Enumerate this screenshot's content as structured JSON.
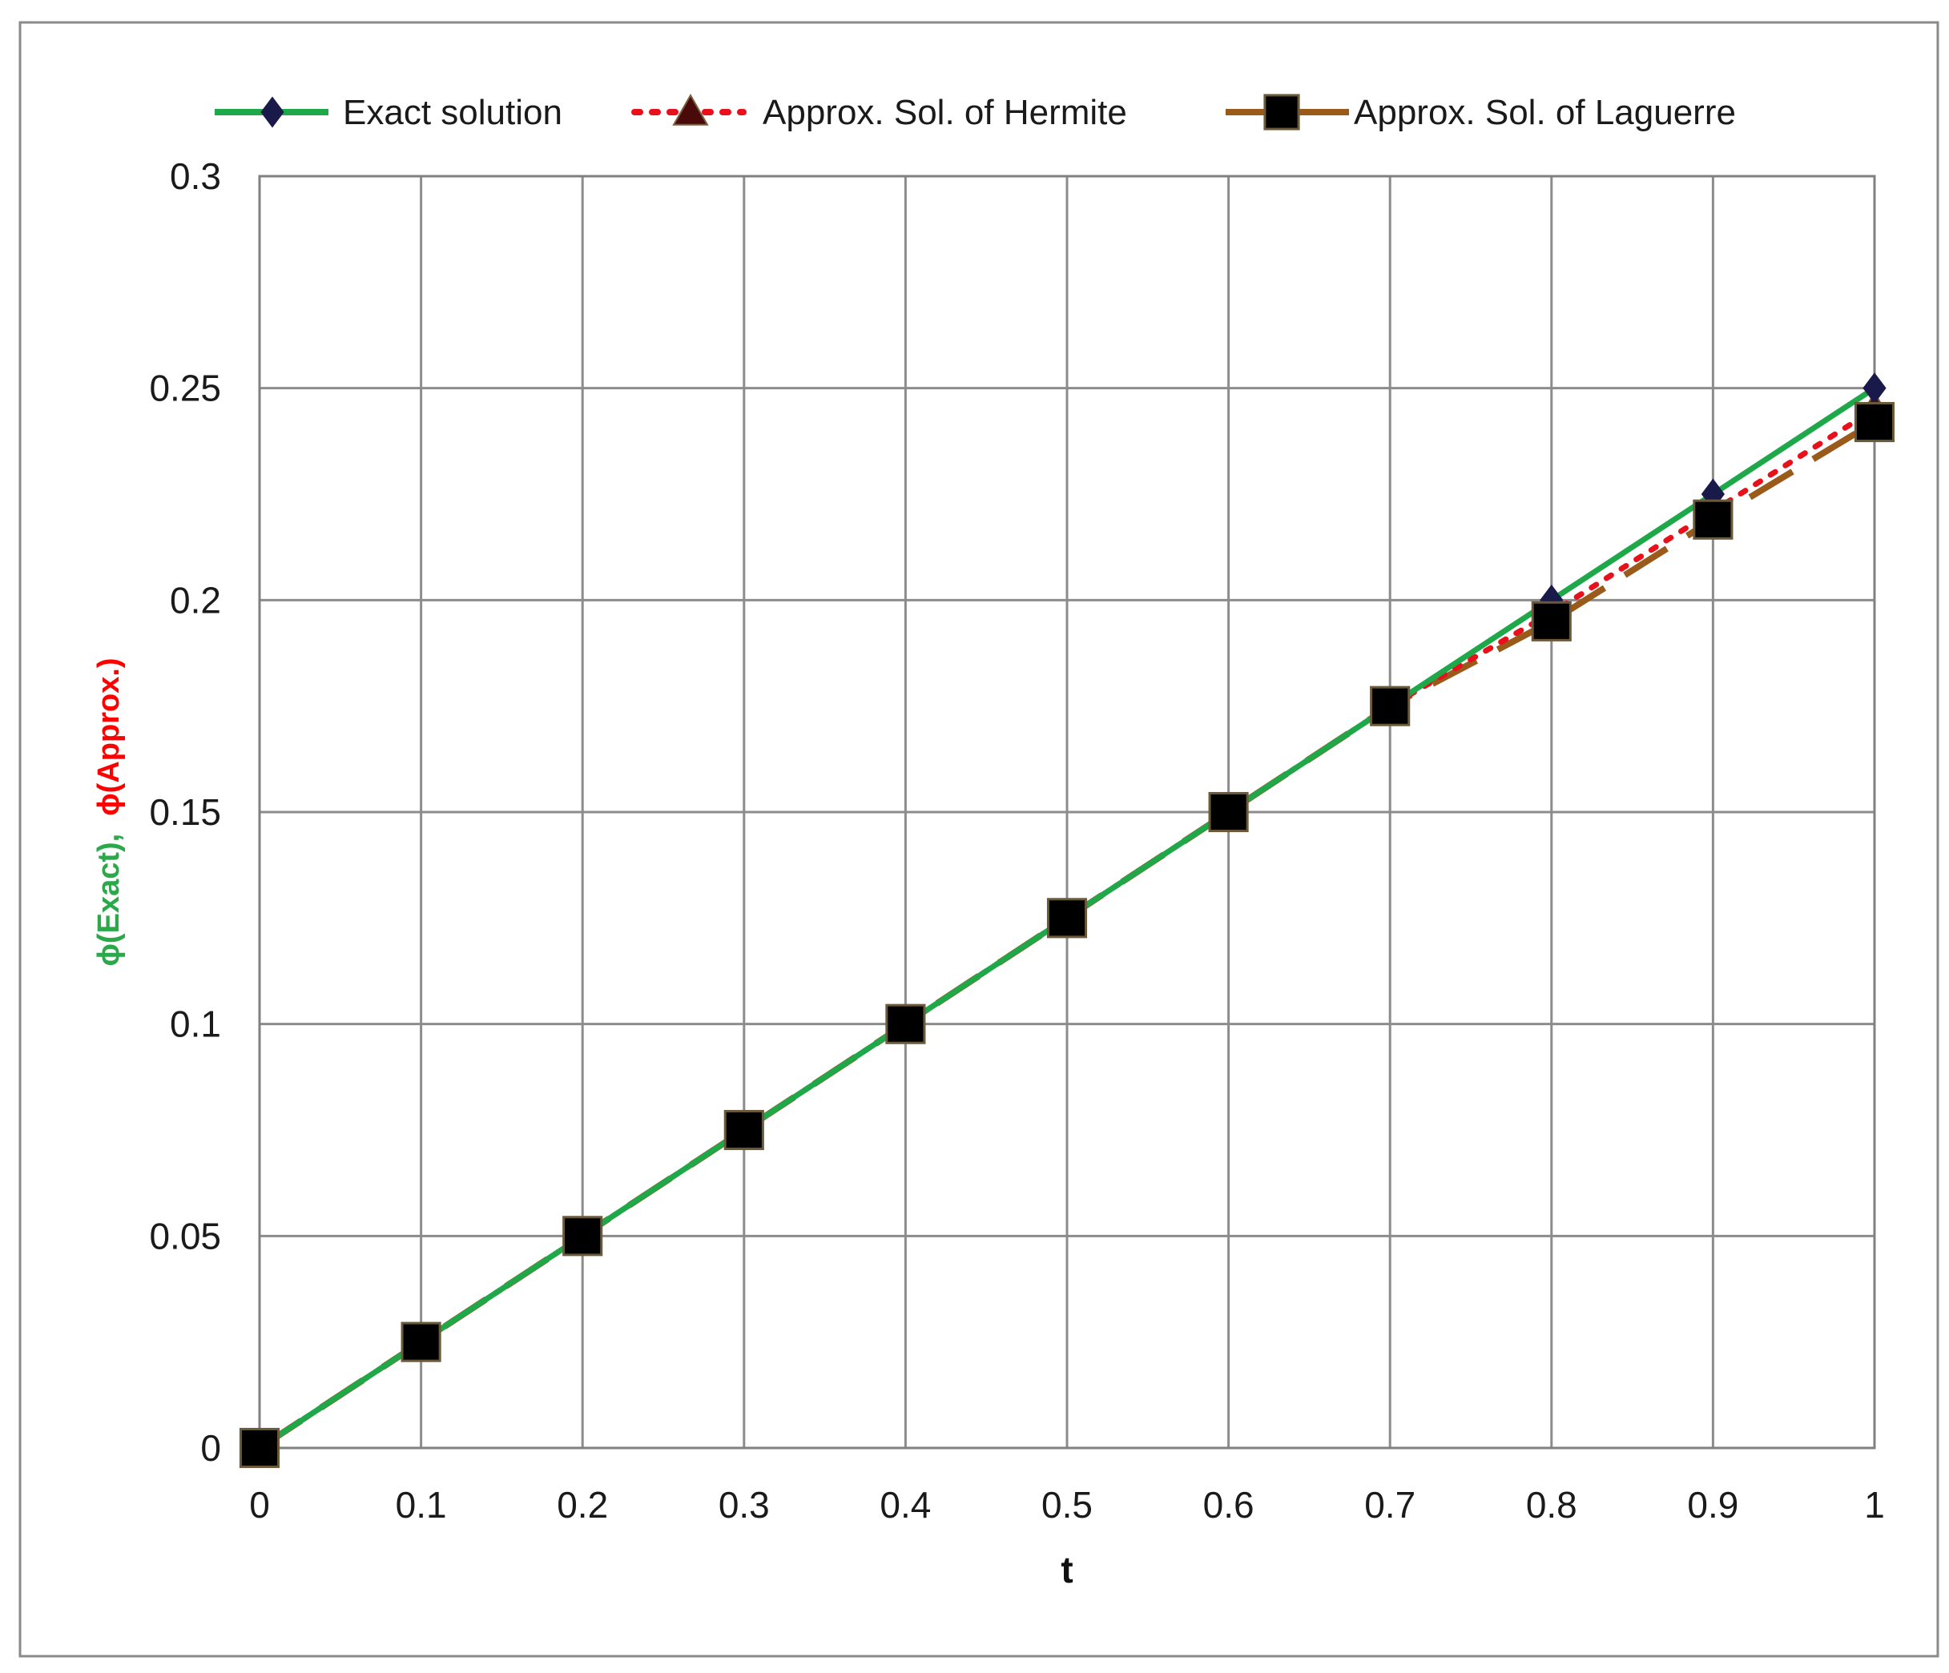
{
  "chart_data": {
    "type": "line",
    "title": "",
    "xlabel": "t",
    "ylabel_parts": [
      {
        "text": "ϕ(Exact),",
        "color": "#2aa84a"
      },
      {
        "text": "ϕ(Approx.)",
        "color": "#ff0000"
      }
    ],
    "xlim": [
      0,
      1
    ],
    "ylim": [
      0,
      0.3
    ],
    "x_ticks": [
      "0",
      "0.1",
      "0.2",
      "0.3",
      "0.4",
      "0.5",
      "0.6",
      "0.7",
      "0.8",
      "0.9",
      "1"
    ],
    "y_ticks": [
      "0",
      "0.05",
      "0.1",
      "0.15",
      "0.2",
      "0.25",
      "0.3"
    ],
    "grid": true,
    "legend_position": "top",
    "x": [
      0,
      0.1,
      0.2,
      0.3,
      0.4,
      0.5,
      0.6,
      0.7,
      0.8,
      0.9,
      1.0
    ],
    "series": [
      {
        "name": "Exact solution",
        "values": [
          0,
          0.025,
          0.05,
          0.075,
          0.1,
          0.125,
          0.15,
          0.175,
          0.2,
          0.225,
          0.25
        ],
        "color": "#1ea84a",
        "line_style": "solid",
        "marker": "diamond",
        "marker_color": "#1a1a4a"
      },
      {
        "name": "Approx. Sol. of Hermite",
        "values": [
          0,
          0.025,
          0.05,
          0.075,
          0.1,
          0.125,
          0.15,
          0.175,
          0.197,
          0.221,
          0.245
        ],
        "color": "#e8101a",
        "line_style": "dotted",
        "marker": "triangle",
        "marker_color": "#4a0a0a"
      },
      {
        "name": "Approx. Sol. of Laguerre",
        "values": [
          0,
          0.025,
          0.05,
          0.075,
          0.1,
          0.125,
          0.15,
          0.175,
          0.195,
          0.219,
          0.242
        ],
        "color": "#9a5a1a",
        "line_style": "dashed",
        "marker": "square",
        "marker_color": "#000000"
      }
    ]
  }
}
